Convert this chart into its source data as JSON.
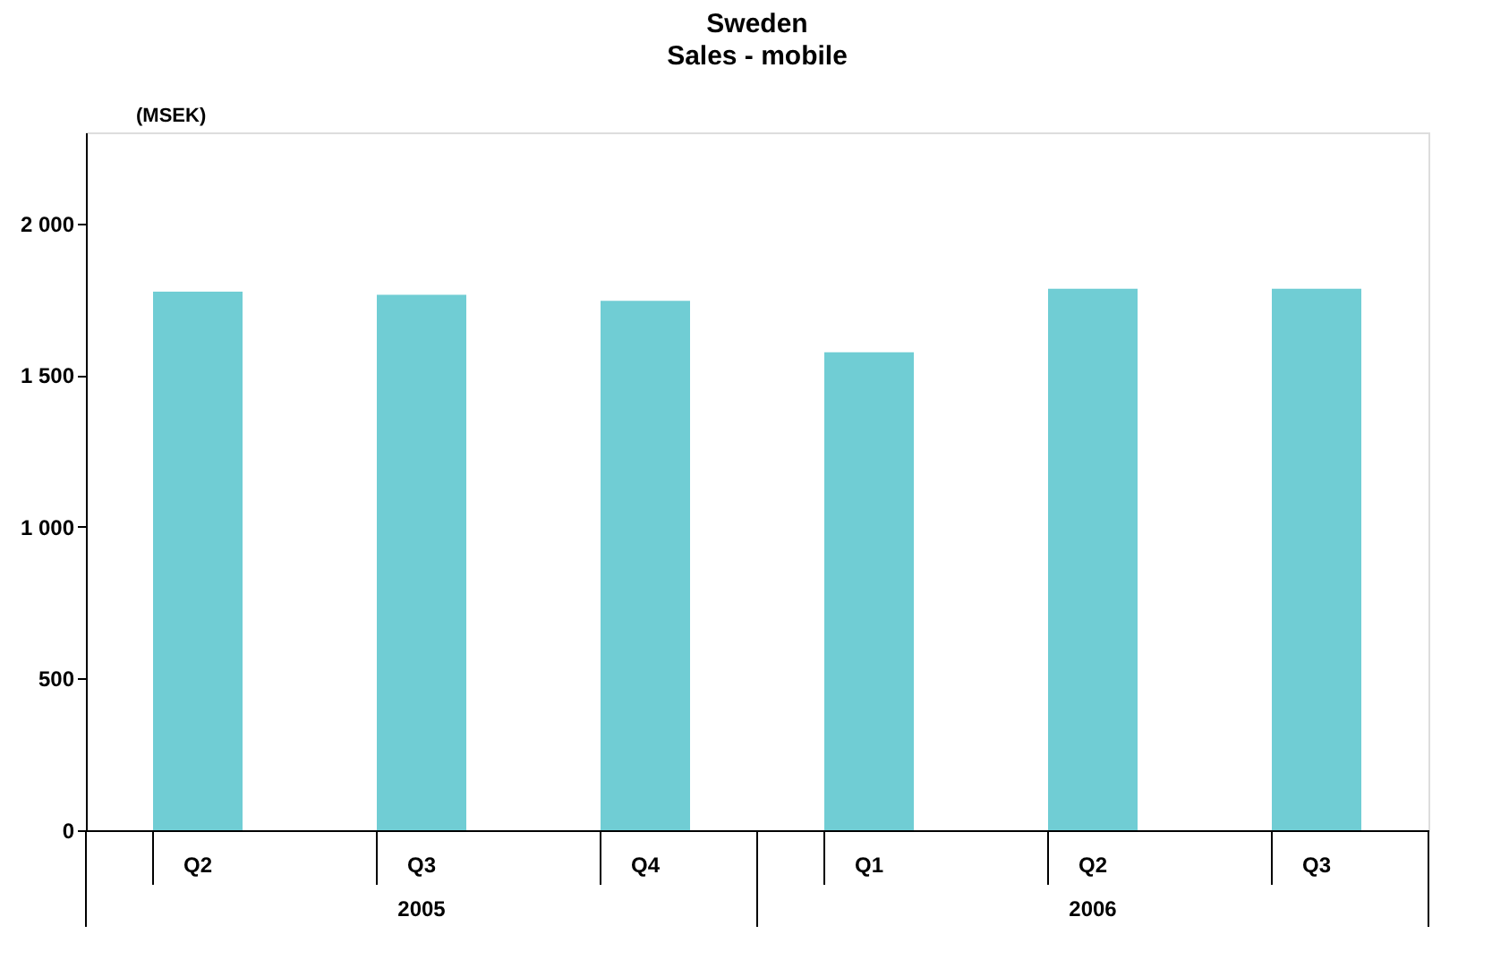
{
  "chart_data": {
    "type": "bar",
    "title": "Sweden",
    "subtitle": "Sales - mobile",
    "ylabel": "(MSEK)",
    "categories": [
      "Q2",
      "Q3",
      "Q4",
      "Q1",
      "Q2",
      "Q3"
    ],
    "values": [
      1775,
      1765,
      1745,
      1575,
      1785,
      1785
    ],
    "color": "#70cdd4",
    "ylim": [
      0,
      2300
    ],
    "yticks": [
      {
        "value": 0,
        "label": "0"
      },
      {
        "value": 500,
        "label": "500"
      },
      {
        "value": 1000,
        "label": "1 000"
      },
      {
        "value": 1500,
        "label": "1 500"
      },
      {
        "value": 2000,
        "label": "2 000"
      }
    ],
    "grid": false,
    "annotations": [
      "2005",
      "2006"
    ]
  }
}
